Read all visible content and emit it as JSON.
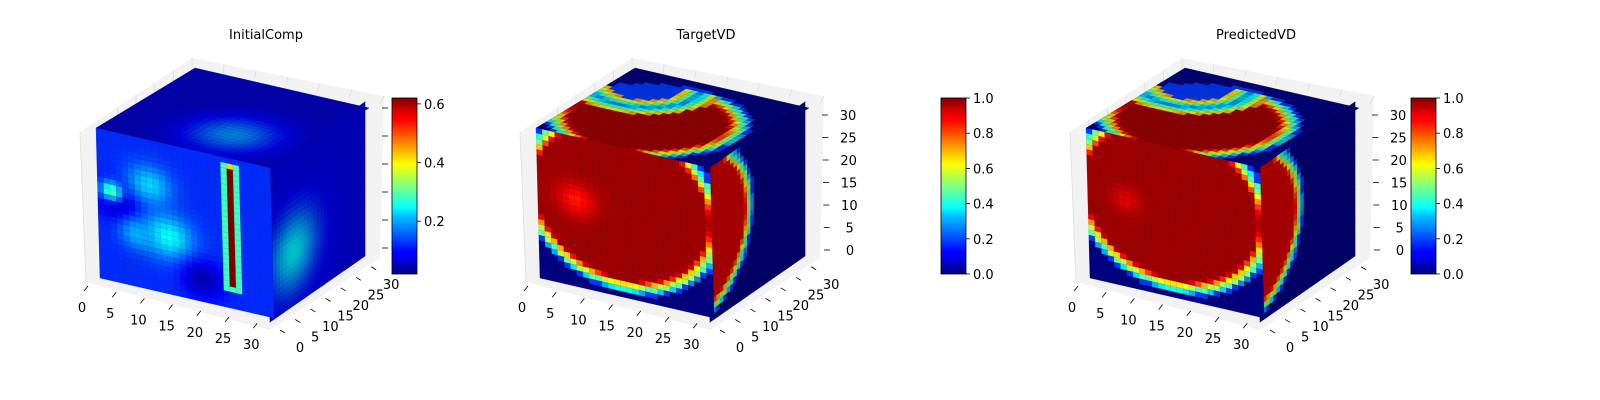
{
  "colormap": "jet",
  "chart_data": [
    {
      "type": "heatmap",
      "subtype": "3d-voxel",
      "title": "InitialComp",
      "x_ticks": [
        "0",
        "5",
        "10",
        "15",
        "20",
        "25",
        "30"
      ],
      "y_ticks": [
        "0",
        "5",
        "10",
        "15",
        "20",
        "25",
        "30"
      ],
      "z_ticks": [],
      "colorbar": {
        "ticks": [
          "0.2",
          "0.4",
          "0.6"
        ],
        "min": 0.02,
        "max": 0.62
      },
      "front_face": {
        "background": 0.12,
        "blobs": [
          {
            "u": 0.12,
            "v": 0.45,
            "r": 0.16,
            "value": 0.05
          },
          {
            "u": 0.08,
            "v": 0.4,
            "r": 0.08,
            "value": 0.3
          },
          {
            "u": 0.3,
            "v": 0.3,
            "r": 0.16,
            "value": 0.22
          },
          {
            "u": 0.4,
            "v": 0.62,
            "r": 0.18,
            "value": 0.25
          },
          {
            "u": 0.22,
            "v": 0.65,
            "r": 0.12,
            "value": 0.2
          },
          {
            "u": 0.6,
            "v": 0.85,
            "r": 0.15,
            "value": 0.05
          }
        ],
        "bars": [
          {
            "u0": 0.75,
            "u1": 0.8,
            "v0": 0.05,
            "v1": 0.86,
            "value": 0.62
          }
        ]
      },
      "top_face": {
        "background": 0.06,
        "blobs": [
          {
            "u": 0.62,
            "v": 0.3,
            "r": 0.3,
            "value": 0.18
          }
        ]
      },
      "side_face": {
        "background": 0.08,
        "blobs": [
          {
            "u": 0.25,
            "v": 0.65,
            "r": 0.32,
            "value": 0.24
          }
        ]
      }
    },
    {
      "type": "heatmap",
      "subtype": "3d-voxel",
      "title": "TargetVD",
      "x_ticks": [
        "0",
        "5",
        "10",
        "15",
        "20",
        "25",
        "30"
      ],
      "y_ticks": [
        "0",
        "5",
        "10",
        "15",
        "20",
        "25",
        "30"
      ],
      "z_ticks": [
        "0",
        "5",
        "10",
        "15",
        "20",
        "25",
        "30"
      ],
      "colorbar": {
        "ticks": [
          "0.0",
          "0.2",
          "0.4",
          "0.6",
          "0.8",
          "1.0"
        ],
        "min": 0.0,
        "max": 1.0
      },
      "front_face": {
        "background": 0.0,
        "sphere": {
          "cu": 0.48,
          "cv": 0.38,
          "r": 0.58,
          "inner": 0.97,
          "edge_width": 0.08
        },
        "hot_spots": [
          {
            "u": 0.22,
            "v": 0.42,
            "r": 0.13,
            "value": 0.85
          }
        ]
      },
      "top_face": {
        "background": 0.0,
        "sphere": {
          "cu": 0.42,
          "cv": 0.4,
          "r": 0.5,
          "inner": 0.97,
          "edge_width": 0.1
        },
        "notch": {
          "u": 0.18,
          "v": 0.8,
          "r": 0.28
        }
      },
      "side_face": {
        "background": 0.0,
        "sphere": {
          "cu": -0.1,
          "cv": 0.42,
          "r": 0.55,
          "inner": 0.92,
          "edge_width": 0.08
        }
      }
    },
    {
      "type": "heatmap",
      "subtype": "3d-voxel",
      "title": "PredictedVD",
      "x_ticks": [
        "0",
        "5",
        "10",
        "15",
        "20",
        "25",
        "30"
      ],
      "y_ticks": [
        "0",
        "5",
        "10",
        "15",
        "20",
        "25",
        "30"
      ],
      "z_ticks": [
        "0",
        "5",
        "10",
        "15",
        "20",
        "25",
        "30"
      ],
      "colorbar": {
        "ticks": [
          "0.0",
          "0.2",
          "0.4",
          "0.6",
          "0.8",
          "1.0"
        ],
        "min": 0.0,
        "max": 1.0
      },
      "front_face": {
        "background": 0.0,
        "sphere": {
          "cu": 0.48,
          "cv": 0.38,
          "r": 0.58,
          "inner": 0.97,
          "edge_width": 0.08
        },
        "hot_spots": [
          {
            "u": 0.22,
            "v": 0.42,
            "r": 0.1,
            "value": 0.9
          }
        ]
      },
      "top_face": {
        "background": 0.0,
        "sphere": {
          "cu": 0.42,
          "cv": 0.4,
          "r": 0.5,
          "inner": 0.97,
          "edge_width": 0.1
        },
        "notch": {
          "u": 0.18,
          "v": 0.8,
          "r": 0.28
        }
      },
      "side_face": {
        "background": 0.0,
        "sphere": {
          "cu": -0.1,
          "cv": 0.42,
          "r": 0.55,
          "inner": 0.92,
          "edge_width": 0.08
        }
      }
    }
  ]
}
